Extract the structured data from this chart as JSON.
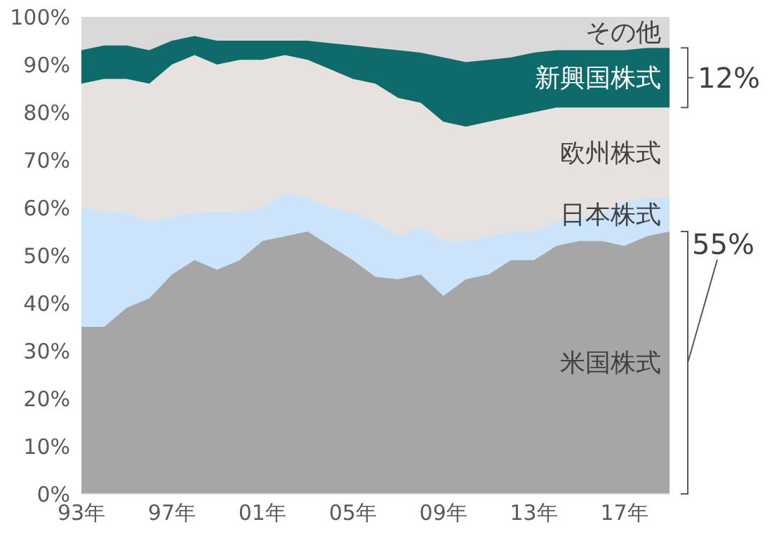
{
  "chart_data": {
    "type": "area",
    "stacked": true,
    "legend": false,
    "grid": false,
    "categories": [
      "93年",
      null,
      null,
      null,
      "97年",
      null,
      null,
      null,
      "01年",
      null,
      null,
      null,
      "05年",
      null,
      null,
      null,
      "09年",
      null,
      null,
      null,
      "13年",
      null,
      null,
      null,
      "17年",
      null,
      null
    ],
    "ylim": [
      0,
      100
    ],
    "yticks": [
      {
        "value": 0,
        "label": "0%"
      },
      {
        "value": 10,
        "label": "10%"
      },
      {
        "value": 20,
        "label": "20%"
      },
      {
        "value": 30,
        "label": "30%"
      },
      {
        "value": 40,
        "label": "40%"
      },
      {
        "value": 50,
        "label": "50%"
      },
      {
        "value": 60,
        "label": "60%"
      },
      {
        "value": 70,
        "label": "70%"
      },
      {
        "value": 80,
        "label": "80%"
      },
      {
        "value": 90,
        "label": "90%"
      },
      {
        "value": 100,
        "label": "100%"
      }
    ],
    "series": [
      {
        "name": "米国株式",
        "color": "#a6a6a6",
        "values": [
          35,
          35,
          39,
          41,
          46,
          49,
          47,
          49,
          53,
          54,
          55,
          52,
          49,
          45.5,
          45,
          46,
          41.5,
          45,
          46,
          49,
          49,
          52,
          53,
          53,
          52,
          54,
          55
        ]
      },
      {
        "name": "日本株式",
        "color": "#cce4fb",
        "values": [
          25,
          24,
          20,
          16,
          12,
          10,
          12,
          10,
          7,
          9,
          7,
          8,
          10,
          11.5,
          9,
          10,
          11.5,
          8,
          8,
          6,
          6,
          5,
          5,
          6,
          9,
          8,
          7
        ]
      },
      {
        "name": "欧州株式",
        "color": "#e7e2df",
        "values": [
          26,
          28,
          28,
          29,
          32,
          33,
          31,
          32,
          31,
          29,
          29,
          29,
          28,
          29,
          29,
          26,
          25,
          24,
          24,
          24,
          25,
          24,
          23,
          22,
          20,
          19,
          19
        ]
      },
      {
        "name": "新興国株式",
        "color": "#0f6b6b",
        "values": [
          7,
          7,
          7,
          7,
          5,
          4,
          5,
          4,
          4,
          3,
          4,
          5.5,
          7,
          7.5,
          10,
          10.5,
          13.5,
          13.5,
          13,
          12.5,
          12.5,
          12,
          12,
          12,
          12,
          12.5,
          12.5
        ]
      },
      {
        "name": "その他",
        "color": "#d9d9d9",
        "values": [
          7,
          6,
          6,
          7,
          5,
          4,
          5,
          5,
          5,
          5,
          5,
          5.5,
          6,
          6.5,
          7,
          7.5,
          8.5,
          9.5,
          9,
          8.5,
          7.5,
          7,
          7,
          7,
          7,
          6.5,
          6.5
        ]
      }
    ],
    "annotations": [
      "12%",
      "55%"
    ]
  }
}
